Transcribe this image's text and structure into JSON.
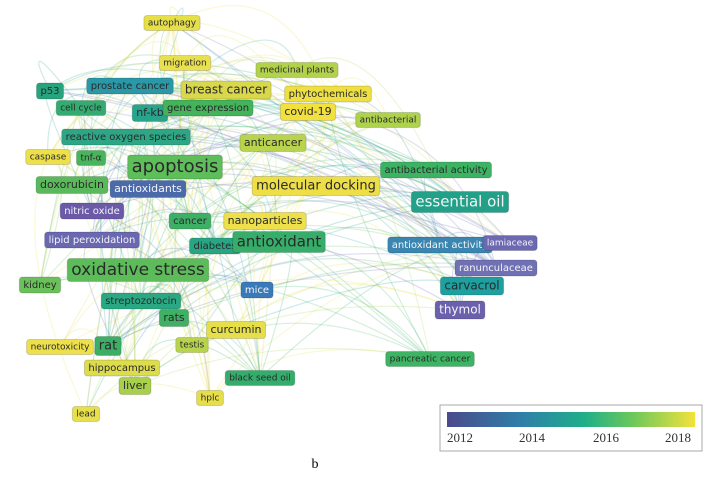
{
  "nodes": [
    {
      "label": "autophagy",
      "color": "#e6df48"
    },
    {
      "label": "migration",
      "color": "#e9e050"
    },
    {
      "label": "medicinal plants",
      "color": "#b3d24c"
    },
    {
      "label": "p53",
      "color": "#27a37e"
    },
    {
      "label": "prostate cancer",
      "color": "#2a98a6"
    },
    {
      "label": "breast cancer",
      "color": "#d9d84a"
    },
    {
      "label": "phytochemicals",
      "color": "#eedf42"
    },
    {
      "label": "cell cycle",
      "color": "#34ab70"
    },
    {
      "label": "nf-kb",
      "color": "#28a48c"
    },
    {
      "label": "gene expression",
      "color": "#44b45a"
    },
    {
      "label": "covid-19",
      "color": "#f1e03e"
    },
    {
      "label": "antibacterial",
      "color": "#aed24c"
    },
    {
      "label": "reactive oxygen species",
      "color": "#2ea686"
    },
    {
      "label": "anticancer",
      "color": "#b9d44c"
    },
    {
      "label": "caspase",
      "color": "#eee04a"
    },
    {
      "label": "tnf-α",
      "color": "#48b45c"
    },
    {
      "label": "apoptosis",
      "color": "#5dbe5a"
    },
    {
      "label": "antibacterial activity",
      "color": "#3cb363"
    },
    {
      "label": "doxorubicin",
      "color": "#5ab95a"
    },
    {
      "label": "antioxidants",
      "color": "#4a6aaa"
    },
    {
      "label": "molecular docking",
      "color": "#eedf46"
    },
    {
      "label": "essential oil",
      "color": "#22a088"
    },
    {
      "label": "nitric oxide",
      "color": "#6a5aa8"
    },
    {
      "label": "cancer",
      "color": "#3eb066"
    },
    {
      "label": "nanoparticles",
      "color": "#ede04a"
    },
    {
      "label": "lipid peroxidation",
      "color": "#6a68b0"
    },
    {
      "label": "diabetes",
      "color": "#28a684"
    },
    {
      "label": "antioxidant",
      "color": "#36ae6a"
    },
    {
      "label": "antioxidant activity",
      "color": "#3a86b0"
    },
    {
      "label": "lamiaceae",
      "color": "#6c68b2"
    },
    {
      "label": "oxidative stress",
      "color": "#5cbc5a"
    },
    {
      "label": "ranunculaceae",
      "color": "#7070b4"
    },
    {
      "label": "kidney",
      "color": "#6ac05a"
    },
    {
      "label": "carvacrol",
      "color": "#1ea0a0"
    },
    {
      "label": "mice",
      "color": "#3a7ab8"
    },
    {
      "label": "streptozotocin",
      "color": "#2aa884"
    },
    {
      "label": "thymol",
      "color": "#6a60ac"
    },
    {
      "label": "rats",
      "color": "#40b064"
    },
    {
      "label": "curcumin",
      "color": "#e6df4a"
    },
    {
      "label": "testis",
      "color": "#b8d44c"
    },
    {
      "label": "neurotoxicity",
      "color": "#eee04a"
    },
    {
      "label": "rat",
      "color": "#3cae66"
    },
    {
      "label": "pancreatic cancer",
      "color": "#3cb463"
    },
    {
      "label": "hippocampus",
      "color": "#dcdc4c"
    },
    {
      "label": "black seed oil",
      "color": "#34ac6c"
    },
    {
      "label": "liver",
      "color": "#a8d04c"
    },
    {
      "label": "hplc",
      "color": "#e6df4a"
    },
    {
      "label": "lead",
      "color": "#e8e04a"
    }
  ],
  "legend": {
    "ticks": [
      "2012",
      "2014",
      "2016",
      "2018"
    ]
  },
  "caption": "b"
}
